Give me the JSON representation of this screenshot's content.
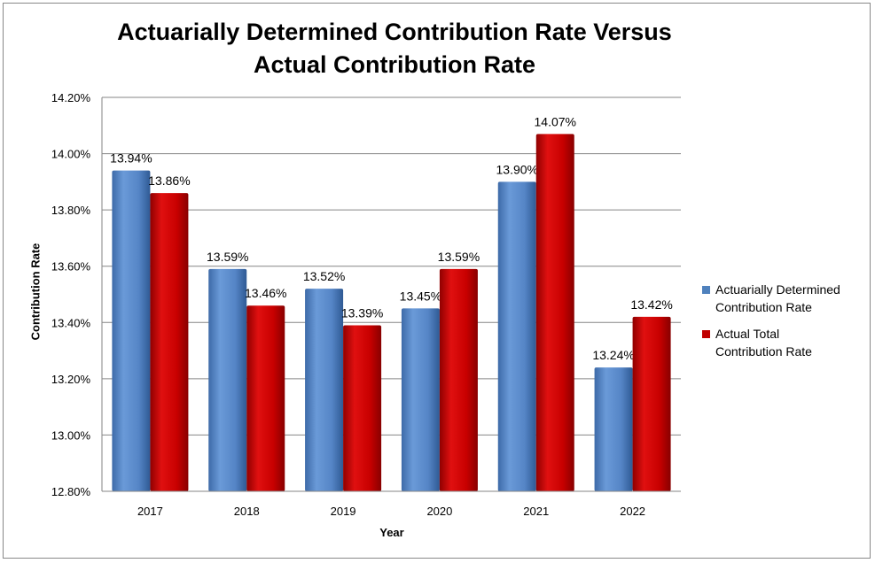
{
  "chart_data": {
    "type": "bar",
    "title": "Actuarially Determined Contribution Rate Versus Actual Contribution Rate",
    "xlabel": "Year",
    "ylabel": "Contribution Rate",
    "ylim": [
      12.8,
      14.2
    ],
    "yticks": [
      "12.80%",
      "13.00%",
      "13.20%",
      "13.40%",
      "13.60%",
      "13.80%",
      "14.00%",
      "14.20%"
    ],
    "grid": true,
    "legend_position": "right",
    "categories": [
      "2017",
      "2018",
      "2019",
      "2020",
      "2021",
      "2022"
    ],
    "series": [
      {
        "name": "Actuarially Determined Contribution Rate",
        "color": "#4f81bd",
        "values": [
          13.94,
          13.59,
          13.52,
          13.45,
          13.9,
          13.24
        ],
        "labels": [
          "13.94%",
          "13.59%",
          "13.52%",
          "13.45%",
          "13.90%",
          "13.24%"
        ]
      },
      {
        "name": "Actual Total Contribution Rate",
        "color": "#c00000",
        "values": [
          13.86,
          13.46,
          13.39,
          13.59,
          14.07,
          13.42
        ],
        "labels": [
          "13.86%",
          "13.46%",
          "13.39%",
          "13.59%",
          "14.07%",
          "13.42%"
        ]
      }
    ]
  },
  "legend": {
    "items": [
      {
        "line1": "Actuarially Determined",
        "line2": "Contribution Rate"
      },
      {
        "line1": "Actual Total",
        "line2": "Contribution Rate"
      }
    ]
  }
}
